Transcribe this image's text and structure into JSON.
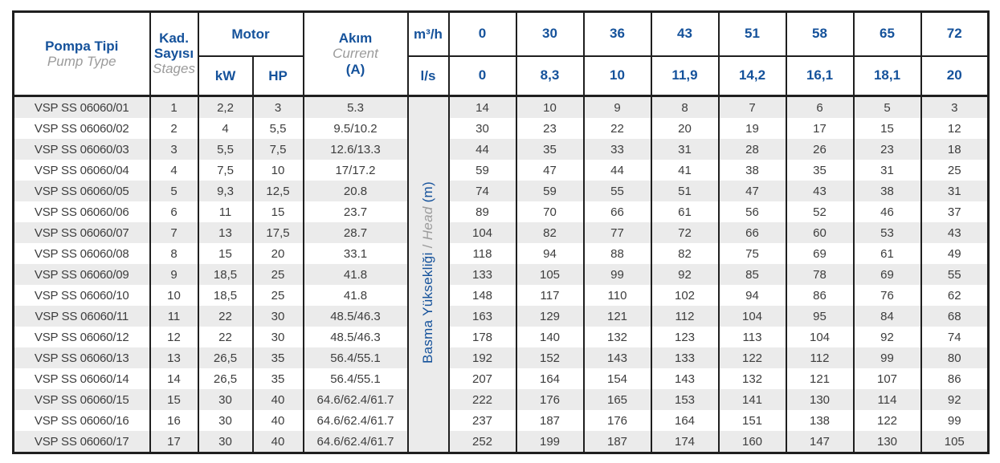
{
  "table": {
    "header": {
      "pompa_tipi": {
        "tr": "Pompa Tipi",
        "en": "Pump Type"
      },
      "stages": {
        "tr1": "Kad.",
        "tr2": "Sayısı",
        "en": "Stages"
      },
      "motor": {
        "label": "Motor",
        "kw": "kW",
        "hp": "HP"
      },
      "akim": {
        "tr": "Akım",
        "en": "Current",
        "unit": "(A)"
      },
      "flow_units": {
        "m3h": "m³/h",
        "ls": "l/s"
      },
      "flow_m3h": [
        "0",
        "30",
        "36",
        "43",
        "51",
        "58",
        "65",
        "72"
      ],
      "flow_ls": [
        "0",
        "8,3",
        "10",
        "11,9",
        "14,2",
        "16,1",
        "18,1",
        "20"
      ]
    },
    "head_label": {
      "tr": "Basma Yüksekliği",
      "sep": " / ",
      "en": "Head",
      "unit": " (m)"
    },
    "rows": [
      {
        "type": "VSP SS 06060/01",
        "stages": "1",
        "kw": "2,2",
        "hp": "3",
        "current": "5.3",
        "head": [
          "14",
          "10",
          "9",
          "8",
          "7",
          "6",
          "5",
          "3"
        ]
      },
      {
        "type": "VSP SS 06060/02",
        "stages": "2",
        "kw": "4",
        "hp": "5,5",
        "current": "9.5/10.2",
        "head": [
          "30",
          "23",
          "22",
          "20",
          "19",
          "17",
          "15",
          "12"
        ]
      },
      {
        "type": "VSP SS 06060/03",
        "stages": "3",
        "kw": "5,5",
        "hp": "7,5",
        "current": "12.6/13.3",
        "head": [
          "44",
          "35",
          "33",
          "31",
          "28",
          "26",
          "23",
          "18"
        ]
      },
      {
        "type": "VSP SS 06060/04",
        "stages": "4",
        "kw": "7,5",
        "hp": "10",
        "current": "17/17.2",
        "head": [
          "59",
          "47",
          "44",
          "41",
          "38",
          "35",
          "31",
          "25"
        ]
      },
      {
        "type": "VSP SS 06060/05",
        "stages": "5",
        "kw": "9,3",
        "hp": "12,5",
        "current": "20.8",
        "head": [
          "74",
          "59",
          "55",
          "51",
          "47",
          "43",
          "38",
          "31"
        ]
      },
      {
        "type": "VSP SS 06060/06",
        "stages": "6",
        "kw": "11",
        "hp": "15",
        "current": "23.7",
        "head": [
          "89",
          "70",
          "66",
          "61",
          "56",
          "52",
          "46",
          "37"
        ]
      },
      {
        "type": "VSP SS 06060/07",
        "stages": "7",
        "kw": "13",
        "hp": "17,5",
        "current": "28.7",
        "head": [
          "104",
          "82",
          "77",
          "72",
          "66",
          "60",
          "53",
          "43"
        ]
      },
      {
        "type": "VSP SS 06060/08",
        "stages": "8",
        "kw": "15",
        "hp": "20",
        "current": "33.1",
        "head": [
          "118",
          "94",
          "88",
          "82",
          "75",
          "69",
          "61",
          "49"
        ]
      },
      {
        "type": "VSP SS 06060/09",
        "stages": "9",
        "kw": "18,5",
        "hp": "25",
        "current": "41.8",
        "head": [
          "133",
          "105",
          "99",
          "92",
          "85",
          "78",
          "69",
          "55"
        ]
      },
      {
        "type": "VSP SS 06060/10",
        "stages": "10",
        "kw": "18,5",
        "hp": "25",
        "current": "41.8",
        "head": [
          "148",
          "117",
          "110",
          "102",
          "94",
          "86",
          "76",
          "62"
        ]
      },
      {
        "type": "VSP SS 06060/11",
        "stages": "11",
        "kw": "22",
        "hp": "30",
        "current": "48.5/46.3",
        "head": [
          "163",
          "129",
          "121",
          "112",
          "104",
          "95",
          "84",
          "68"
        ]
      },
      {
        "type": "VSP SS 06060/12",
        "stages": "12",
        "kw": "22",
        "hp": "30",
        "current": "48.5/46.3",
        "head": [
          "178",
          "140",
          "132",
          "123",
          "113",
          "104",
          "92",
          "74"
        ]
      },
      {
        "type": "VSP SS 06060/13",
        "stages": "13",
        "kw": "26,5",
        "hp": "35",
        "current": "56.4/55.1",
        "head": [
          "192",
          "152",
          "143",
          "133",
          "122",
          "112",
          "99",
          "80"
        ]
      },
      {
        "type": "VSP SS 06060/14",
        "stages": "14",
        "kw": "26,5",
        "hp": "35",
        "current": "56.4/55.1",
        "head": [
          "207",
          "164",
          "154",
          "143",
          "132",
          "121",
          "107",
          "86"
        ]
      },
      {
        "type": "VSP SS 06060/15",
        "stages": "15",
        "kw": "30",
        "hp": "40",
        "current": "64.6/62.4/61.7",
        "head": [
          "222",
          "176",
          "165",
          "153",
          "141",
          "130",
          "114",
          "92"
        ]
      },
      {
        "type": "VSP SS 06060/16",
        "stages": "16",
        "kw": "30",
        "hp": "40",
        "current": "64.6/62.4/61.7",
        "head": [
          "237",
          "187",
          "176",
          "164",
          "151",
          "138",
          "122",
          "99"
        ]
      },
      {
        "type": "VSP SS 06060/17",
        "stages": "17",
        "kw": "30",
        "hp": "40",
        "current": "64.6/62.4/61.7",
        "head": [
          "252",
          "199",
          "187",
          "174",
          "160",
          "147",
          "130",
          "105"
        ]
      }
    ]
  },
  "colors": {
    "accent_blue": "#15529b",
    "muted_gray": "#9b9b9b",
    "body_text": "#3d3d3d",
    "row_stripe": "#ebebeb",
    "border": "#1f1f1f"
  }
}
